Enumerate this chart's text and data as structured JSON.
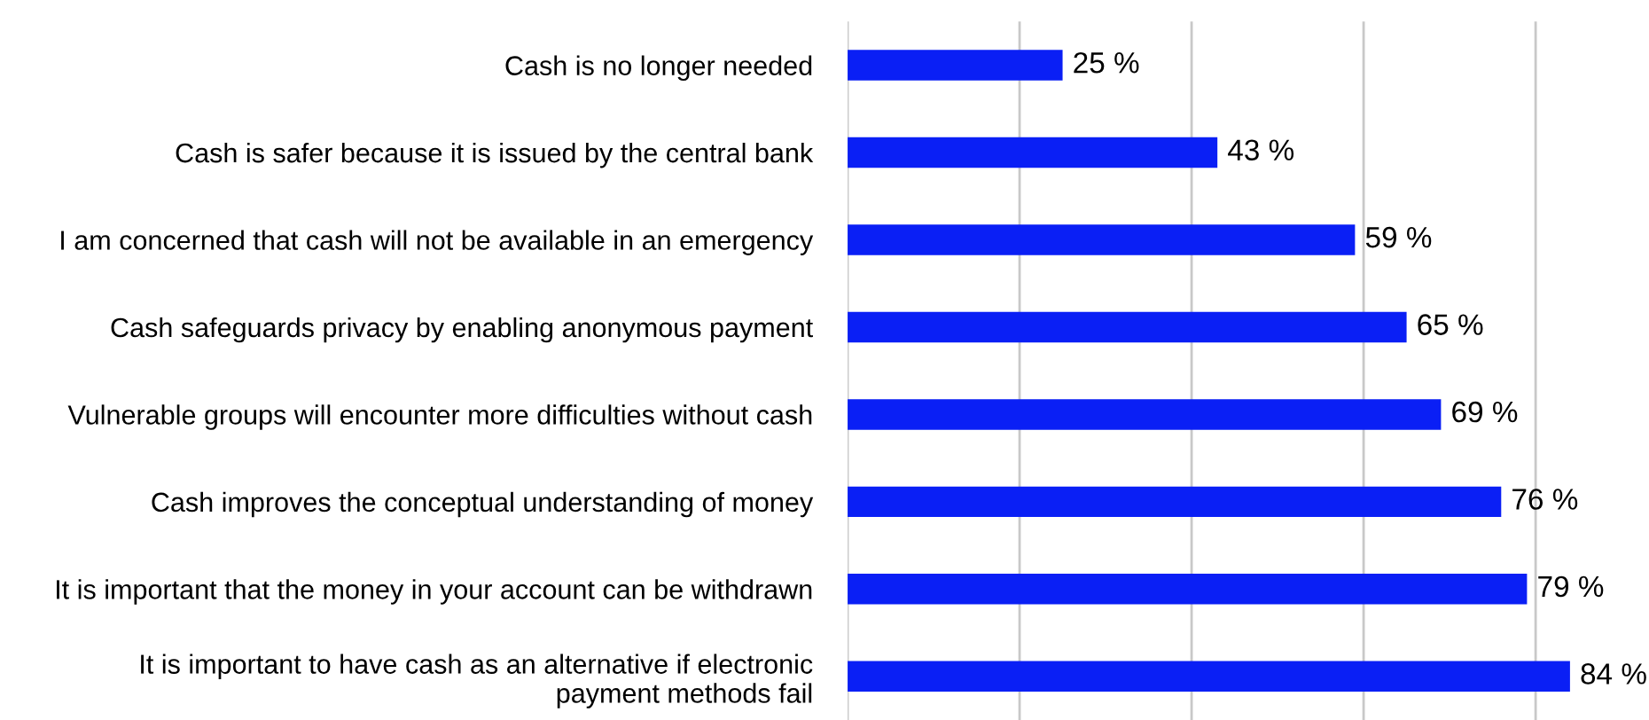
{
  "chart_data": {
    "type": "bar",
    "orientation": "horizontal",
    "categories": [
      "Cash is no longer needed",
      "Cash is safer because it is issued by the central bank",
      "I am concerned that cash will not be available in an emergency",
      "Cash safeguards privacy by enabling anonymous payment",
      "Vulnerable groups will encounter more difficulties without cash",
      "Cash improves the conceptual understanding of money",
      "It is important that the money in your account can be withdrawn",
      "It is important to have cash as an alternative if electronic\npayment methods fail"
    ],
    "values": [
      25,
      43,
      59,
      65,
      69,
      76,
      79,
      84
    ],
    "value_labels": [
      "25 %",
      "43 %",
      "59 %",
      "65 %",
      "69 %",
      "76 %",
      "79 %",
      "84 %"
    ],
    "color": "#0a1ff5",
    "xticks": [
      {
        "value": 0,
        "label": null
      },
      {
        "value": 20,
        "label": null
      },
      {
        "value": 40,
        "label": null
      },
      {
        "value": 60,
        "label": null
      },
      {
        "value": 80,
        "label": null
      }
    ],
    "grid": "x",
    "tick_labels": "y"
  }
}
